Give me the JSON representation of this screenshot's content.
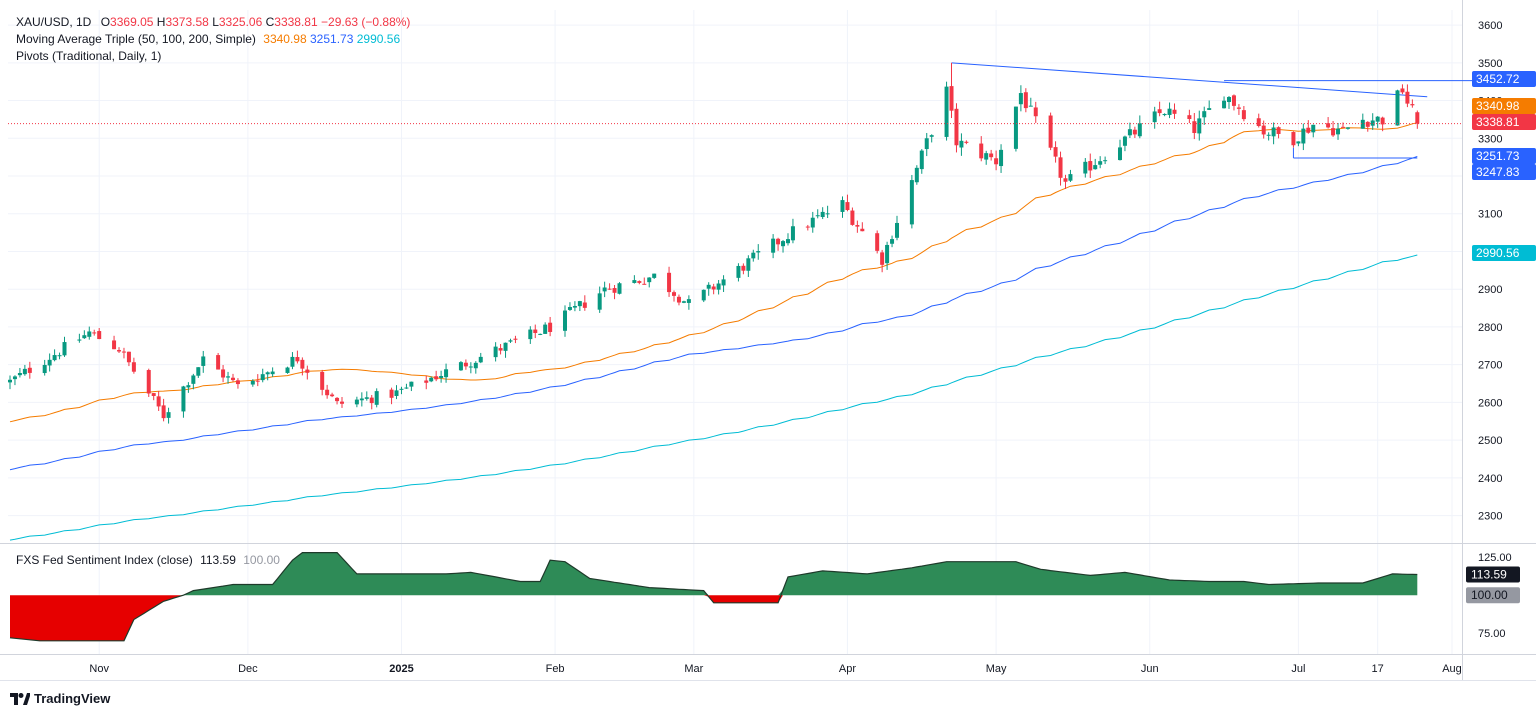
{
  "legend": {
    "symbol": "XAU/USD, 1D",
    "o_label": "O",
    "o": "3369.05",
    "h_label": "H",
    "h": "3373.58",
    "l_label": "L",
    "l": "3325.06",
    "c_label": "C",
    "c": "3338.81",
    "change": "−29.63 (−0.88%)",
    "ma_label": "Moving Average Triple (50, 100, 200, Simple)",
    "ma50": "3340.98",
    "ma100": "3251.73",
    "ma200": "2990.56",
    "pivots_label": "Pivots (Traditional, Daily, 1)",
    "sentiment_label": "FXS Fed Sentiment Index (close)",
    "sentiment_value": "113.59",
    "sentiment_base": "100.00"
  },
  "brand": "TradingView",
  "colors": {
    "up": "#089981",
    "down": "#f23645",
    "ma50": "#f57c00",
    "ma100": "#2962ff",
    "ma200": "#00bcd4",
    "trend": "#2962ff",
    "sent_up": "#2e8b57",
    "sent_down": "#e60000"
  },
  "chart_data": [
    {
      "type": "candlestick",
      "title": "XAU/USD, 1D",
      "ylim": [
        2230,
        3640
      ],
      "y_ticks": [
        2300,
        2400,
        2500,
        2600,
        2700,
        2800,
        2900,
        3000,
        3100,
        3200,
        3300,
        3400,
        3500,
        3600
      ],
      "x_ticks": [
        {
          "label": "Nov",
          "date": "2024-11-01"
        },
        {
          "label": "Dec",
          "date": "2024-12-01"
        },
        {
          "label": "2025",
          "date": "2025-01-01"
        },
        {
          "label": "Feb",
          "date": "2025-02-01"
        },
        {
          "label": "Mar",
          "date": "2025-03-01"
        },
        {
          "label": "Apr",
          "date": "2025-04-01"
        },
        {
          "label": "May",
          "date": "2025-05-01"
        },
        {
          "label": "Jun",
          "date": "2025-06-01"
        },
        {
          "label": "Jul",
          "date": "2025-07-01"
        },
        {
          "label": "17",
          "date": "2025-07-17"
        },
        {
          "label": "Aug",
          "date": "2025-08-01"
        }
      ],
      "price_labels": [
        {
          "value": "3452.72",
          "color": "#2962ff"
        },
        {
          "value": "3340.98",
          "color": "#f57c00"
        },
        {
          "value": "3338.81",
          "color": "#f23645"
        },
        {
          "value": "3251.73",
          "color": "#2962ff"
        },
        {
          "value": "3247.83",
          "color": "#2962ff"
        },
        {
          "value": "2990.56",
          "color": "#00bcd4"
        }
      ],
      "last_close": 3338.81,
      "anchors": [
        [
          "2024-10-14",
          2655
        ],
        [
          "2024-10-30",
          2785
        ],
        [
          "2024-11-05",
          2742
        ],
        [
          "2024-11-14",
          2565
        ],
        [
          "2024-11-22",
          2715
        ],
        [
          "2024-11-29",
          2643
        ],
        [
          "2024-12-11",
          2718
        ],
        [
          "2024-12-19",
          2595
        ],
        [
          "2024-12-31",
          2625
        ],
        [
          "2025-01-16",
          2715
        ],
        [
          "2025-01-31",
          2800
        ],
        [
          "2025-02-11",
          2900
        ],
        [
          "2025-02-21",
          2935
        ],
        [
          "2025-02-28",
          2860
        ],
        [
          "2025-03-20",
          3045
        ],
        [
          "2025-03-31",
          3125
        ],
        [
          "2025-04-08",
          2980
        ],
        [
          "2025-04-21",
          3425
        ],
        [
          "2025-04-23",
          3290
        ],
        [
          "2025-05-01",
          3240
        ],
        [
          "2025-05-06",
          3420
        ],
        [
          "2025-05-15",
          3180
        ],
        [
          "2025-06-04",
          3375
        ],
        [
          "2025-06-10",
          3325
        ],
        [
          "2025-06-16",
          3420
        ],
        [
          "2025-06-24",
          3320
        ],
        [
          "2025-06-30",
          3300
        ],
        [
          "2025-07-04",
          3337
        ],
        [
          "2025-07-10",
          3320
        ],
        [
          "2025-07-14",
          3350
        ],
        [
          "2025-07-18",
          3350
        ],
        [
          "2025-07-22",
          3430
        ],
        [
          "2025-07-23",
          3395
        ],
        [
          "2025-07-24",
          3369.05
        ]
      ],
      "last_candle": {
        "date": "2025-07-25",
        "open": 3369.05,
        "high": 3373.58,
        "low": 3325.06,
        "close": 3338.81
      },
      "ma_series": [
        {
          "name": "MA 50",
          "period": 50,
          "last": 3340.98
        },
        {
          "name": "MA 100",
          "period": 100,
          "last": 3251.73
        },
        {
          "name": "MA 200",
          "period": 200,
          "last": 2990.56
        }
      ],
      "trendlines": [
        {
          "name": "upper",
          "points": [
            [
              "2025-04-22",
              3500
            ],
            [
              "2025-07-27",
              3410
            ]
          ]
        },
        {
          "name": "resistance",
          "points": [
            [
              "2025-06-16",
              3452.72
            ],
            [
              "2025-08-15",
              3452.72
            ]
          ]
        },
        {
          "name": "support",
          "points": [
            [
              "2025-06-30",
              3247.83
            ],
            [
              "2025-07-25",
              3247.83
            ]
          ]
        }
      ]
    },
    {
      "type": "area",
      "title": "FXS Fed Sentiment Index (close)",
      "ylim": [
        62,
        133
      ],
      "y_ticks": [
        75,
        100,
        125
      ],
      "baseline": 100,
      "last": 113.59,
      "anchors": [
        [
          "2024-10-14",
          72
        ],
        [
          "2024-10-20",
          70
        ],
        [
          "2024-10-31",
          70
        ],
        [
          "2024-11-06",
          70
        ],
        [
          "2024-11-08",
          84
        ],
        [
          "2024-11-14",
          96
        ],
        [
          "2024-11-18",
          100
        ],
        [
          "2024-11-20",
          103
        ],
        [
          "2024-11-28",
          107
        ],
        [
          "2024-12-06",
          107
        ],
        [
          "2024-12-10",
          123
        ],
        [
          "2024-12-12",
          128
        ],
        [
          "2024-12-19",
          128
        ],
        [
          "2024-12-23",
          114
        ],
        [
          "2025-01-10",
          114
        ],
        [
          "2025-01-15",
          115
        ],
        [
          "2025-01-25",
          109
        ],
        [
          "2025-01-29",
          109
        ],
        [
          "2025-01-31",
          123
        ],
        [
          "2025-02-03",
          122
        ],
        [
          "2025-02-08",
          111
        ],
        [
          "2025-02-20",
          105
        ],
        [
          "2025-03-03",
          103
        ],
        [
          "2025-03-05",
          95
        ],
        [
          "2025-03-18",
          95
        ],
        [
          "2025-03-20",
          112
        ],
        [
          "2025-03-27",
          116
        ],
        [
          "2025-04-05",
          114
        ],
        [
          "2025-04-14",
          118
        ],
        [
          "2025-04-21",
          122
        ],
        [
          "2025-05-05",
          122
        ],
        [
          "2025-05-10",
          117
        ],
        [
          "2025-05-20",
          113
        ],
        [
          "2025-05-27",
          115
        ],
        [
          "2025-06-05",
          110
        ],
        [
          "2025-06-13",
          109
        ],
        [
          "2025-06-20",
          109
        ],
        [
          "2025-06-25",
          107
        ],
        [
          "2025-07-05",
          108
        ],
        [
          "2025-07-14",
          108
        ],
        [
          "2025-07-20",
          114
        ],
        [
          "2025-07-25",
          113.59
        ]
      ]
    }
  ]
}
